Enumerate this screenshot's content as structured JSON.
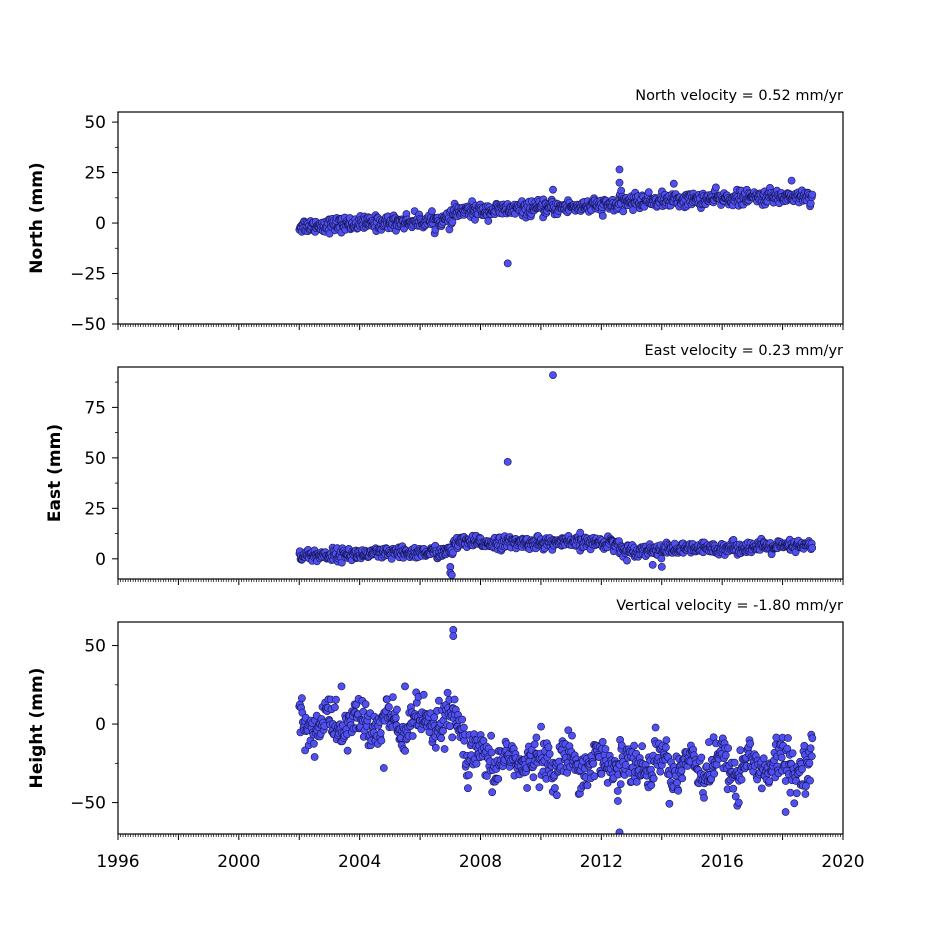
{
  "chart_data": [
    {
      "type": "scatter",
      "title": "North velocity = 0.52 mm/yr",
      "ylabel": "North (mm)",
      "xlim": [
        1996,
        2020
      ],
      "ylim": [
        -50,
        55
      ],
      "yticks": [
        -50,
        -25,
        0,
        25,
        50
      ],
      "ytick_labels": [
        "−50",
        "−25",
        "0",
        "25",
        "50"
      ],
      "xtick_labels_visible": false,
      "series": [
        {
          "values_note_type": "segments",
          "segments": [
            {
              "x": [
                2002.0,
                2007.1
              ],
              "y": [
                -1.5,
                1.5
              ],
              "noise": 1.8
            },
            {
              "x": [
                2007.1,
                2012.6
              ],
              "y": [
                5.5,
                9.0
              ],
              "noise": 1.8
            },
            {
              "x": [
                2012.6,
                2019.0
              ],
              "y": [
                10.5,
                13.5
              ],
              "noise": 1.8
            }
          ],
          "outliers": [
            [
              2008.9,
              -20
            ],
            [
              2012.6,
              26.5
            ],
            [
              2012.6,
              20
            ],
            [
              2018.3,
              21
            ],
            [
              2010.4,
              16.5
            ],
            [
              2014.4,
              19.5
            ]
          ]
        }
      ],
      "grid": false
    },
    {
      "type": "scatter",
      "title": "East velocity = 0.23 mm/yr",
      "ylabel": "East (mm)",
      "xlim": [
        1996,
        2020
      ],
      "ylim": [
        -10,
        95
      ],
      "yticks": [
        0,
        25,
        50,
        75
      ],
      "ytick_labels": [
        "0",
        "25",
        "50",
        "75"
      ],
      "xtick_labels_visible": false,
      "series": [
        {
          "segments": [
            {
              "x": [
                2002.0,
                2007.1
              ],
              "y": [
                1.5,
                3.5
              ],
              "noise": 1.5
            },
            {
              "x": [
                2007.1,
                2012.6
              ],
              "y": [
                8.0,
                8.0
              ],
              "noise": 1.5
            },
            {
              "x": [
                2012.6,
                2019.0
              ],
              "y": [
                4.0,
                6.5
              ],
              "noise": 1.5
            }
          ],
          "outliers": [
            [
              2008.9,
              48
            ],
            [
              2010.4,
              91
            ],
            [
              2007.0,
              -4
            ],
            [
              2007.0,
              -7
            ],
            [
              2007.05,
              -8
            ],
            [
              2011.3,
              13
            ],
            [
              2013.7,
              -3
            ],
            [
              2014.0,
              -4
            ]
          ]
        }
      ],
      "grid": false
    },
    {
      "type": "scatter",
      "title": "Vertical velocity = -1.80 mm/yr",
      "ylabel": "Height (mm)",
      "xlim": [
        1996,
        2020
      ],
      "ylim": [
        -70,
        65
      ],
      "yticks": [
        -50,
        0,
        50
      ],
      "ytick_labels": [
        "−50",
        "0",
        "50"
      ],
      "xticks": [
        1996,
        2000,
        2004,
        2008,
        2012,
        2016,
        2020
      ],
      "xtick_labels": [
        "1996",
        "2000",
        "2004",
        "2008",
        "2012",
        "2016",
        "2020"
      ],
      "series": [
        {
          "segments": [
            {
              "x": [
                2002.0,
                2007.5
              ],
              "y": [
                0.0,
                0.0
              ],
              "noise": 7.5
            },
            {
              "x": [
                2007.5,
                2019.0
              ],
              "y": [
                -23.0,
                -27.0
              ],
              "noise": 7.5
            }
          ],
          "outliers": [
            [
              2007.1,
              60
            ],
            [
              2007.1,
              56
            ],
            [
              2012.55,
              -49
            ],
            [
              2012.6,
              -69
            ],
            [
              2016.5,
              -52
            ],
            [
              2016.55,
              -50
            ],
            [
              2018.1,
              -56
            ],
            [
              2015.4,
              -47
            ],
            [
              2004.8,
              -28
            ],
            [
              2005.5,
              24
            ],
            [
              2003.4,
              24
            ]
          ]
        }
      ],
      "grid": false
    }
  ]
}
